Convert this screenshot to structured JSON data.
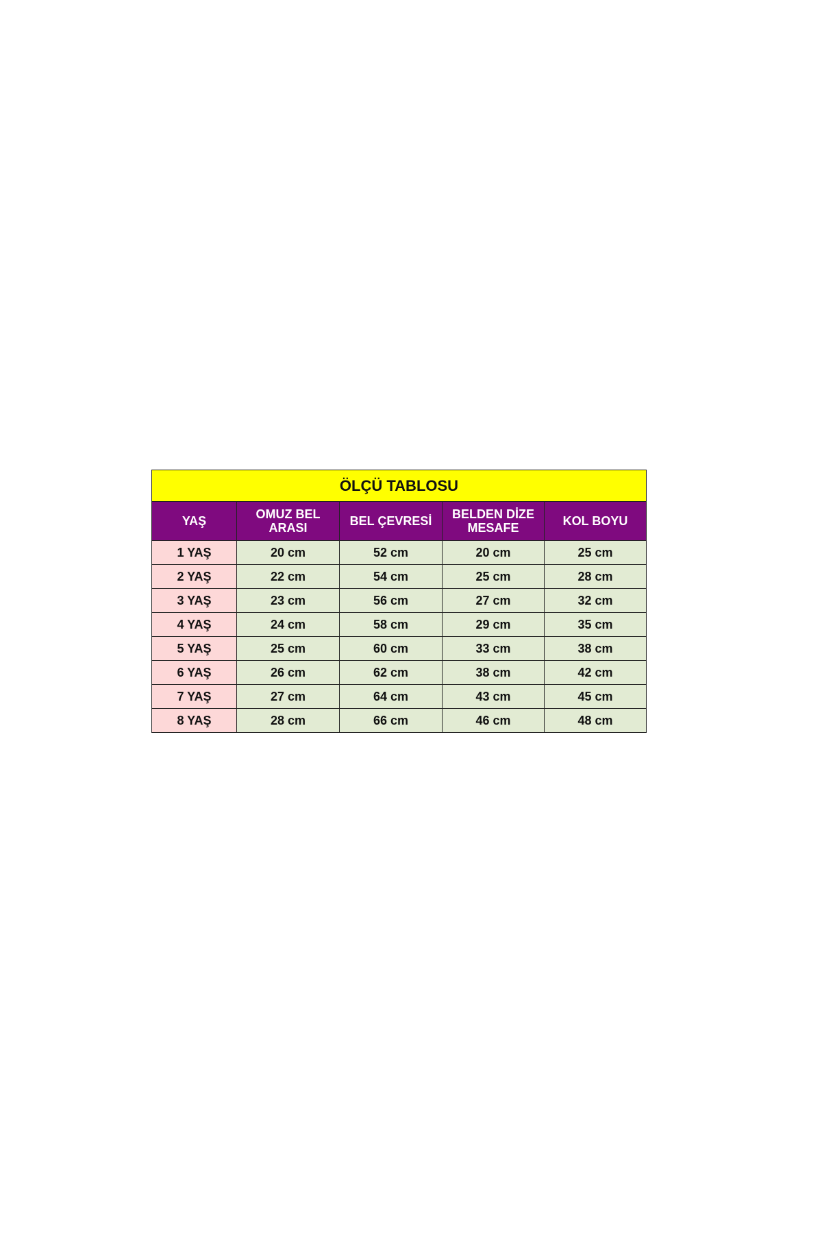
{
  "title": "ÖLÇÜ TABLOSU",
  "headers": [
    "YAŞ",
    "OMUZ BEL ARASI",
    "BEL ÇEVRESİ",
    "BELDEN DİZE MESAFE",
    "KOL BOYU"
  ],
  "rows": [
    [
      "1 YAŞ",
      "20 cm",
      "52 cm",
      "20 cm",
      "25 cm"
    ],
    [
      "2 YAŞ",
      "22 cm",
      "54 cm",
      "25 cm",
      "28 cm"
    ],
    [
      "3 YAŞ",
      "23 cm",
      "56 cm",
      "27 cm",
      "32 cm"
    ],
    [
      "4 YAŞ",
      "24 cm",
      "58 cm",
      "29 cm",
      "35 cm"
    ],
    [
      "5 YAŞ",
      "25 cm",
      "60 cm",
      "33 cm",
      "38 cm"
    ],
    [
      "6 YAŞ",
      "26 cm",
      "62 cm",
      "38 cm",
      "42 cm"
    ],
    [
      "7 YAŞ",
      "27 cm",
      "64 cm",
      "43 cm",
      "45 cm"
    ],
    [
      "8 YAŞ",
      "28 cm",
      "66 cm",
      "46 cm",
      "48 cm"
    ]
  ],
  "colors": {
    "title_bg": "#ffff00",
    "header_bg": "#7f0a7f",
    "age_bg": "#fdd8d8",
    "value_bg": "#e2ebd3"
  }
}
